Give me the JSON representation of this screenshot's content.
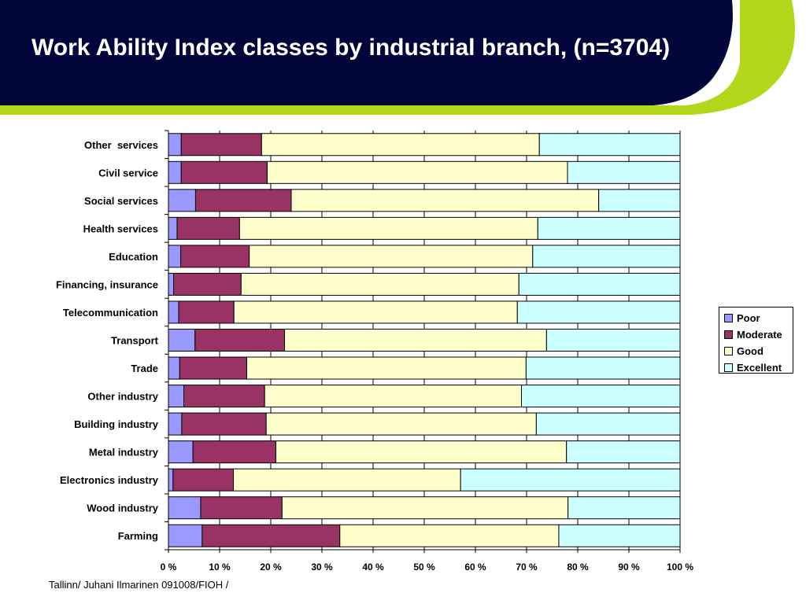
{
  "slide": {
    "title": "Work Ability Index classes by industrial branch, (n=3704)",
    "footer": "Tallinn/ Juhani Ilmarinen 091008/FIOH /",
    "colors": {
      "header_bg": "#00063a",
      "accent": "#b3d81b"
    }
  },
  "chart_data": {
    "type": "bar",
    "orientation": "horizontal",
    "stacked": true,
    "percent_stacked": true,
    "title": "",
    "xlabel": "",
    "ylabel": "",
    "xlim": [
      0,
      100
    ],
    "x_ticks": [
      "0 %",
      "10 %",
      "20 %",
      "30 %",
      "40 %",
      "50 %",
      "60 %",
      "70 %",
      "80 %",
      "90 %",
      "100 %"
    ],
    "grid": true,
    "legend_position": "right",
    "categories": [
      "Other  services",
      "Civil service",
      "Social services",
      "Health services",
      "Education",
      "Financing, insurance",
      "Telecommunication",
      "Transport",
      "Trade",
      "Other industry",
      "Building industry",
      "Metal industry",
      "Electronics industry",
      "Wood industry",
      "Farming"
    ],
    "series": [
      {
        "name": "Poor",
        "color": "#9999ff",
        "values": [
          2.5,
          2.5,
          5.3,
          1.7,
          2.4,
          1.0,
          2.0,
          5.2,
          2.2,
          3.0,
          2.6,
          4.8,
          0.9,
          6.3,
          6.6
        ]
      },
      {
        "name": "Moderate",
        "color": "#993366",
        "values": [
          15.7,
          16.8,
          18.7,
          12.2,
          13.4,
          13.2,
          10.8,
          17.5,
          13.1,
          15.8,
          16.5,
          16.2,
          11.8,
          15.9,
          26.9
        ]
      },
      {
        "name": "Good",
        "color": "#ffffcc",
        "values": [
          54.3,
          58.7,
          60.1,
          58.3,
          55.4,
          54.3,
          55.4,
          51.2,
          54.6,
          50.2,
          52.8,
          56.8,
          44.4,
          55.9,
          42.8
        ]
      },
      {
        "name": "Excellent",
        "color": "#ccffff",
        "values": [
          27.5,
          22.0,
          15.9,
          27.8,
          28.8,
          31.5,
          31.8,
          26.1,
          30.1,
          31.0,
          28.1,
          22.2,
          42.9,
          21.9,
          23.7
        ]
      }
    ]
  }
}
